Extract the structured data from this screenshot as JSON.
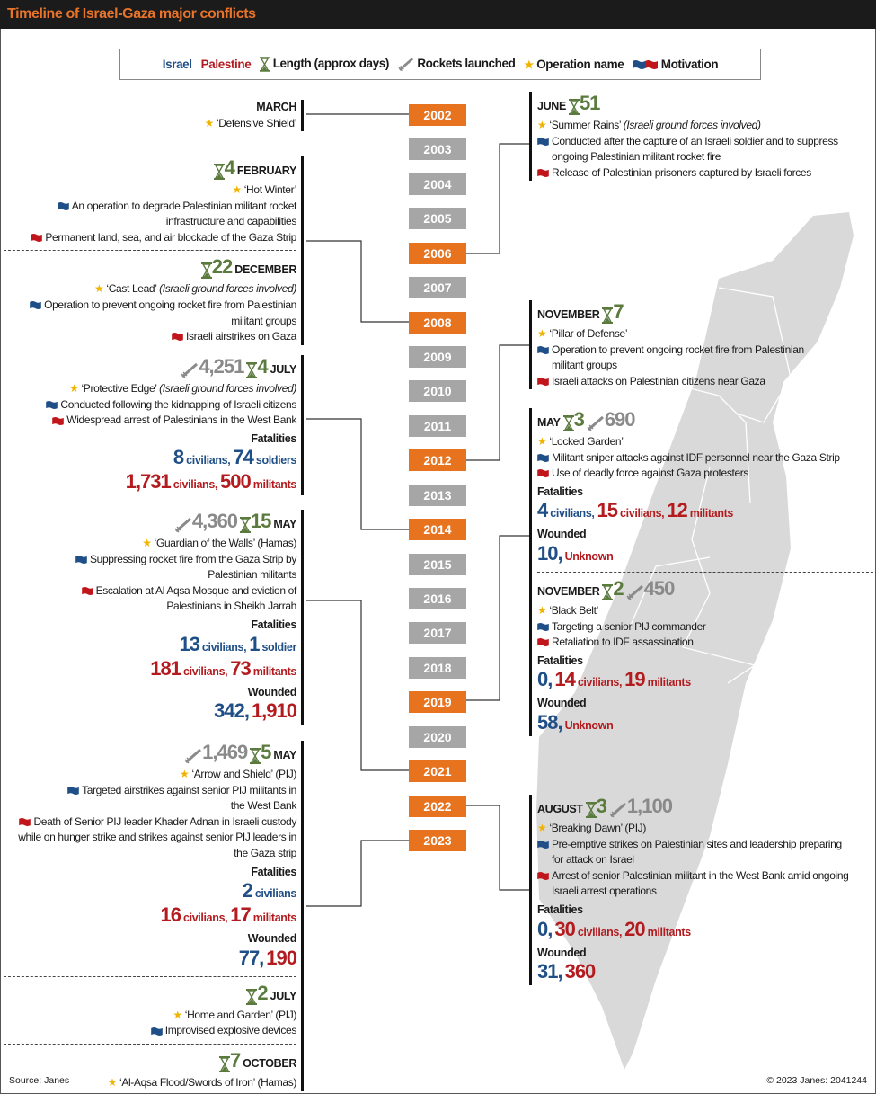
{
  "title": "Timeline of Israel-Gaza major conflicts",
  "legend": {
    "israel": "Israel",
    "palestine": "Palestine",
    "length": "Length (approx days)",
    "rockets": "Rockets launched",
    "operation": "Operation name",
    "motivation": "Motivation"
  },
  "colors": {
    "israel": "#1f4f86",
    "palestine": "#b31b1f",
    "highlight_year": "#e8731f",
    "plain_year": "#a6a6a6",
    "days": "#5b7b3e",
    "rockets": "#8a8a8a",
    "star": "#f0b400"
  },
  "years": [
    {
      "label": "2002",
      "highlighted": true
    },
    {
      "label": "2003",
      "highlighted": false
    },
    {
      "label": "2004",
      "highlighted": false
    },
    {
      "label": "2005",
      "highlighted": false
    },
    {
      "label": "2006",
      "highlighted": true
    },
    {
      "label": "2007",
      "highlighted": false
    },
    {
      "label": "2008",
      "highlighted": true
    },
    {
      "label": "2009",
      "highlighted": false
    },
    {
      "label": "2010",
      "highlighted": false
    },
    {
      "label": "2011",
      "highlighted": false
    },
    {
      "label": "2012",
      "highlighted": true
    },
    {
      "label": "2013",
      "highlighted": false
    },
    {
      "label": "2014",
      "highlighted": true
    },
    {
      "label": "2015",
      "highlighted": false
    },
    {
      "label": "2016",
      "highlighted": false
    },
    {
      "label": "2017",
      "highlighted": false
    },
    {
      "label": "2018",
      "highlighted": false
    },
    {
      "label": "2019",
      "highlighted": true
    },
    {
      "label": "2020",
      "highlighted": false
    },
    {
      "label": "2021",
      "highlighted": true
    },
    {
      "label": "2022",
      "highlighted": true
    },
    {
      "label": "2023",
      "highlighted": true
    }
  ],
  "e2002": {
    "month": "MARCH",
    "operation": "‘Defensive Shield’"
  },
  "e2006": {
    "month": "JUNE",
    "days": "51",
    "operation": "‘Summer Rains’",
    "note": "(Israeli ground forces involved)",
    "israel": "Conducted after the capture of an Israeli soldier and to suppress ongoing Palestinian militant rocket fire",
    "palestine": "Release of Palestinian prisoners captured by Israeli forces"
  },
  "e2008a": {
    "month": "FEBRUARY",
    "days": "4",
    "operation": "‘Hot Winter’",
    "israel": "An operation to degrade Palestinian militant rocket infrastructure and capabilities",
    "palestine": "Permanent land, sea, and air blockade of the Gaza Strip"
  },
  "e2008b": {
    "month": "DECEMBER",
    "days": "22",
    "operation": "‘Cast Lead’",
    "note": "(Israeli ground forces involved)",
    "israel": "Operation to prevent ongoing rocket fire from Palestinian militant groups",
    "palestine": "Israeli airstrikes on Gaza"
  },
  "e2012": {
    "month": "NOVEMBER",
    "days": "7",
    "operation": "‘Pillar of Defense’",
    "israel": "Operation to prevent ongoing rocket fire from Palestinian militant groups",
    "palestine": "Israeli attacks on Palestinian citizens near Gaza"
  },
  "e2014": {
    "month": "JULY",
    "days": "4",
    "rockets": "4,251",
    "operation": "‘Protective Edge’",
    "note": "(Israeli ground forces involved)",
    "israel": "Conducted following the kidnapping of Israeli citizens",
    "palestine": "Widespread arrest of Palestinians in the West Bank",
    "fatalities_label": "Fatalities",
    "fat_isr": [
      {
        "n": "8",
        "u": "civilians,"
      },
      {
        "n": "74",
        "u": "soldiers"
      }
    ],
    "fat_pal": [
      {
        "n": "1,731",
        "u": "civilians,"
      },
      {
        "n": "500",
        "u": "militants"
      }
    ]
  },
  "e2019a": {
    "month": "MAY",
    "days": "3",
    "rockets": "690",
    "operation": "‘Locked Garden’",
    "israel": "Militant sniper attacks against IDF personnel near the Gaza Strip",
    "palestine": "Use of deadly force against Gaza protesters",
    "fatalities_label": "Fatalities",
    "fat_isr": [
      {
        "n": "4",
        "u": "civilians,"
      }
    ],
    "fat_pal": [
      {
        "n": "15",
        "u": "civilians,"
      },
      {
        "n": "12",
        "u": "militants"
      }
    ],
    "wounded_label": "Wounded",
    "wounded_isr": "10,",
    "wounded_pal": "Unknown"
  },
  "e2019b": {
    "month": "NOVEMBER",
    "days": "2",
    "rockets": "450",
    "operation": "‘Black Belt’",
    "israel": "Targeting a senior PIJ commander",
    "palestine": "Retaliation to IDF assassination",
    "fatalities_label": "Fatalities",
    "fat_isr": [
      {
        "n": "0,",
        "u": ""
      }
    ],
    "fat_pal": [
      {
        "n": "14",
        "u": "civilians,"
      },
      {
        "n": "19",
        "u": "militants"
      }
    ],
    "wounded_label": "Wounded",
    "wounded_isr": "58,",
    "wounded_pal": "Unknown"
  },
  "e2021": {
    "month": "MAY",
    "days": "15",
    "rockets": "4,360",
    "operation": "‘Guardian of the Walls’ (Hamas)",
    "israel": "Suppressing rocket fire from the Gaza Strip by Palestinian militants",
    "palestine": "Escalation at Al Aqsa Mosque and eviction of Palestinians in Sheikh Jarrah",
    "fatalities_label": "Fatalities",
    "fat_isr": [
      {
        "n": "13",
        "u": "civilians,"
      },
      {
        "n": "1",
        "u": "soldier"
      }
    ],
    "fat_pal": [
      {
        "n": "181",
        "u": "civilians,"
      },
      {
        "n": "73",
        "u": "militants"
      }
    ],
    "wounded_label": "Wounded",
    "wounded_isr": "342,",
    "wounded_pal": "1,910"
  },
  "e2022": {
    "month": "AUGUST",
    "days": "3",
    "rockets": "1,100",
    "operation": "‘Breaking Dawn’ (PIJ)",
    "israel": "Pre-emptive strikes on Palestinian sites and leadership preparing for attack on Israel",
    "palestine": "Arrest of senior Palestinian militant in the West Bank amid ongoing Israeli arrest operations",
    "fatalities_label": "Fatalities",
    "fat_isr": [
      {
        "n": "0,",
        "u": ""
      }
    ],
    "fat_pal": [
      {
        "n": "30",
        "u": "civilians,"
      },
      {
        "n": "20",
        "u": "militants"
      }
    ],
    "wounded_label": "Wounded",
    "wounded_isr": "31,",
    "wounded_pal": "360"
  },
  "e2023a": {
    "month": "MAY",
    "days": "5",
    "rockets": "1,469",
    "operation": "‘Arrow and Shield’ (PIJ)",
    "israel": "Targeted airstrikes against senior PIJ militants in the West Bank",
    "palestine": "Death of Senior PIJ leader Khader Adnan in Israeli custody while on hunger strike and strikes against senior PIJ leaders in the Gaza strip",
    "fatalities_label": "Fatalities",
    "fat_isr": [
      {
        "n": "2",
        "u": "civilians"
      }
    ],
    "fat_pal": [
      {
        "n": "16",
        "u": "civilians,"
      },
      {
        "n": "17",
        "u": "militants"
      }
    ],
    "wounded_label": "Wounded",
    "wounded_isr": "77,",
    "wounded_pal": "190"
  },
  "e2023b": {
    "month": "JULY",
    "days": "2",
    "operation": "‘Home and Garden’ (PIJ)",
    "israel": "Improvised explosive devices"
  },
  "e2023c": {
    "month": "OCTOBER",
    "days": "7",
    "operation": "‘Al-Aqsa Flood/Swords of Iron’ (Hamas)"
  },
  "footer": {
    "source": "Source: Janes",
    "copyright": "© 2023 Janes: 2041244"
  }
}
